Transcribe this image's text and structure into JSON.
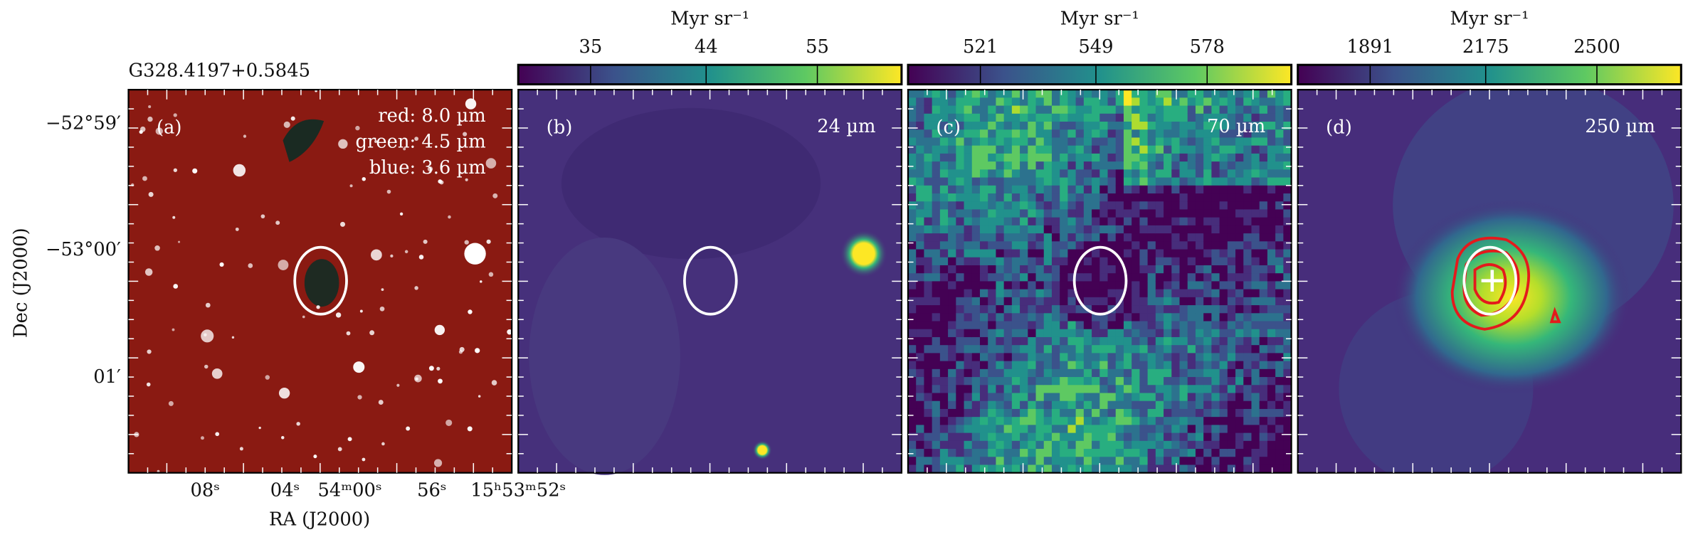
{
  "figure": {
    "source_name": "G328.4197+0.5845",
    "xlabel": "RA (J2000)",
    "ylabel": "Dec (J2000)",
    "xticks": [
      "08ˢ",
      "04ˢ",
      "54ᵐ00ˢ",
      "56ˢ",
      "15ʰ53ᵐ52ˢ"
    ],
    "yticks": [
      "−52°59′",
      "−53°00′",
      "01′"
    ],
    "panels": [
      {
        "label": "(a)",
        "annotations": [
          "red: 8.0 µm",
          "green: 4.5 µm",
          "blue: 3.6 µm"
        ]
      },
      {
        "label": "(b)",
        "band": "24 µm",
        "colorbar": {
          "unit": "Myr sr⁻¹",
          "ticks": [
            35,
            44,
            55
          ]
        }
      },
      {
        "label": "(c)",
        "band": "70 µm",
        "colorbar": {
          "unit": "Myr sr⁻¹",
          "ticks": [
            521,
            549,
            578
          ]
        }
      },
      {
        "label": "(d)",
        "band": "250 µm",
        "colorbar": {
          "unit": "Myr sr⁻¹",
          "ticks": [
            1891,
            2175,
            2500
          ]
        }
      }
    ]
  }
}
